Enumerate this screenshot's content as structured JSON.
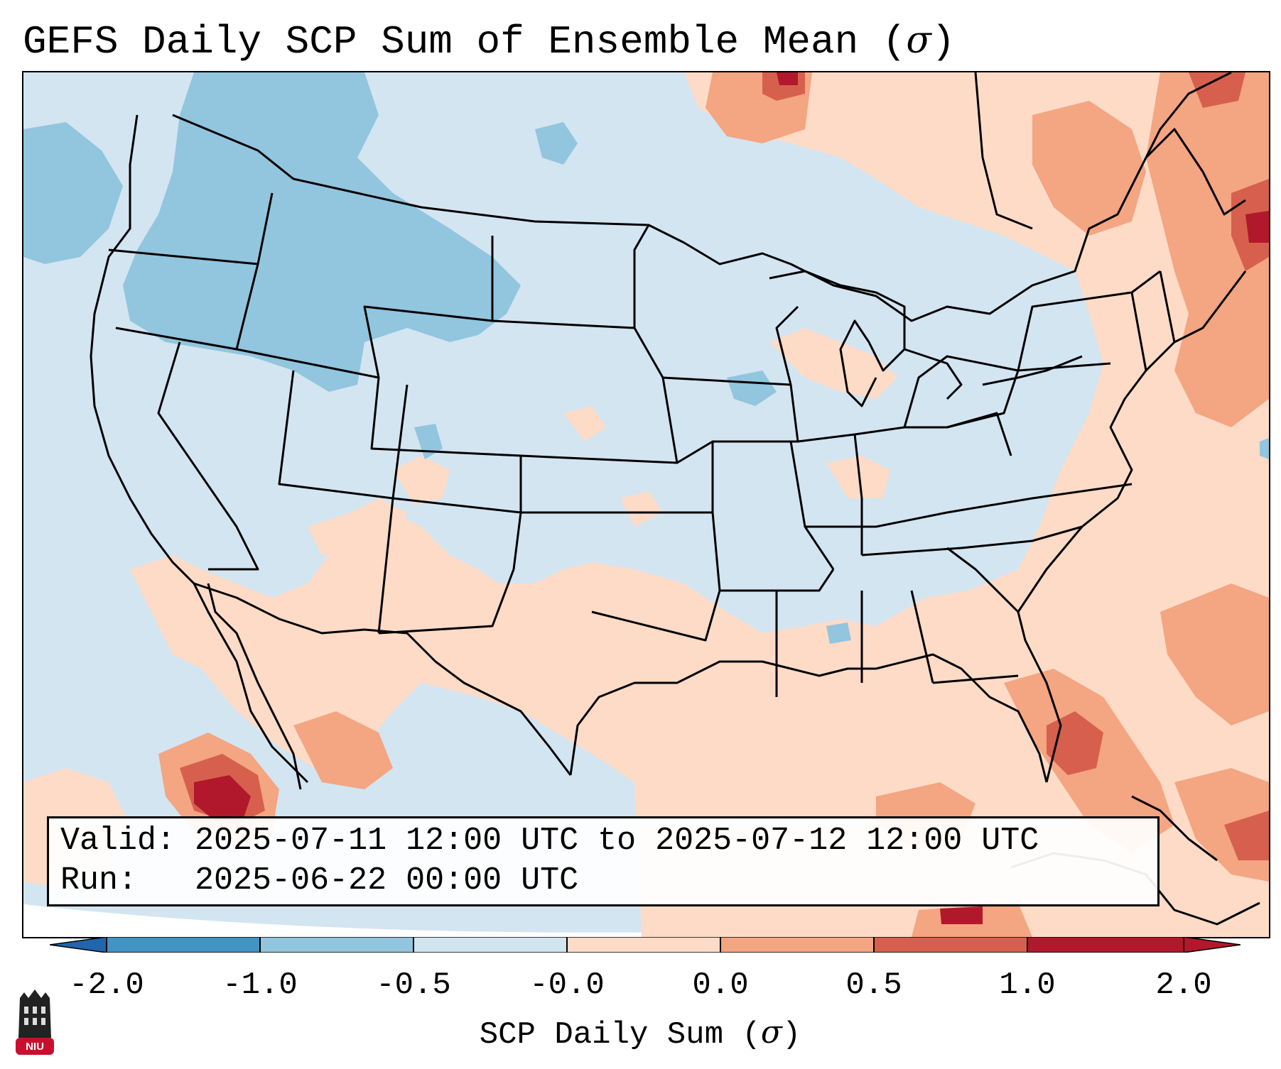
{
  "title": {
    "text": "GEFS Daily SCP Sum of Ensemble Mean (",
    "symbol": "σ",
    "close": ")"
  },
  "info": {
    "valid_label": "Valid:",
    "valid_text": "2025-07-11 12:00 UTC to 2025-07-12 12:00 UTC",
    "run_label": "Run:",
    "run_text": "2025-06-22 00:00 UTC"
  },
  "colorbar": {
    "ticks": [
      "-2.0",
      "-1.0",
      "-0.5",
      "-0.0",
      "0.0",
      "0.5",
      "1.0",
      "2.0"
    ],
    "colors": [
      "#2166ac",
      "#4393c3",
      "#92c5de",
      "#d1e5f0",
      "#fddbc7",
      "#f4a582",
      "#d6604d",
      "#b2182b"
    ],
    "label_text": "SCP Daily Sum (",
    "label_symbol": "σ",
    "label_close": ")"
  },
  "map": {
    "ocean_color": "#d3e5f1",
    "border_color": "#000000"
  },
  "logo": {
    "text": "NIU",
    "color": "#c8102e"
  }
}
